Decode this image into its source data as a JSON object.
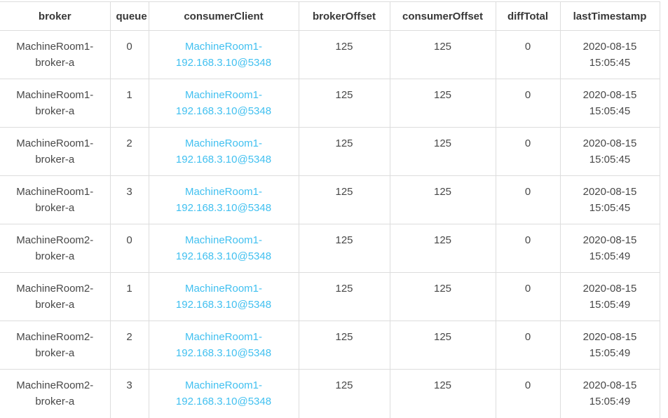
{
  "colors": {
    "link": "#41c0f0",
    "border": "#dddddd",
    "header_text": "#383838",
    "body_text": "#484848"
  },
  "table": {
    "columns": [
      {
        "key": "broker",
        "label": "broker"
      },
      {
        "key": "queue",
        "label": "queue"
      },
      {
        "key": "consumerClient",
        "label": "consumerClient"
      },
      {
        "key": "brokerOffset",
        "label": "brokerOffset"
      },
      {
        "key": "consumerOffset",
        "label": "consumerOffset"
      },
      {
        "key": "diffTotal",
        "label": "diffTotal"
      },
      {
        "key": "lastTimestamp",
        "label": "lastTimestamp"
      }
    ],
    "link_column": "consumerClient",
    "rows": [
      {
        "broker": "MachineRoom1-broker-a",
        "queue": "0",
        "consumerClient": "MachineRoom1-192.168.3.10@5348",
        "brokerOffset": "125",
        "consumerOffset": "125",
        "diffTotal": "0",
        "lastTimestamp": "2020-08-15 15:05:45"
      },
      {
        "broker": "MachineRoom1-broker-a",
        "queue": "1",
        "consumerClient": "MachineRoom1-192.168.3.10@5348",
        "brokerOffset": "125",
        "consumerOffset": "125",
        "diffTotal": "0",
        "lastTimestamp": "2020-08-15 15:05:45"
      },
      {
        "broker": "MachineRoom1-broker-a",
        "queue": "2",
        "consumerClient": "MachineRoom1-192.168.3.10@5348",
        "brokerOffset": "125",
        "consumerOffset": "125",
        "diffTotal": "0",
        "lastTimestamp": "2020-08-15 15:05:45"
      },
      {
        "broker": "MachineRoom1-broker-a",
        "queue": "3",
        "consumerClient": "MachineRoom1-192.168.3.10@5348",
        "brokerOffset": "125",
        "consumerOffset": "125",
        "diffTotal": "0",
        "lastTimestamp": "2020-08-15 15:05:45"
      },
      {
        "broker": "MachineRoom2-broker-a",
        "queue": "0",
        "consumerClient": "MachineRoom1-192.168.3.10@5348",
        "brokerOffset": "125",
        "consumerOffset": "125",
        "diffTotal": "0",
        "lastTimestamp": "2020-08-15 15:05:49"
      },
      {
        "broker": "MachineRoom2-broker-a",
        "queue": "1",
        "consumerClient": "MachineRoom1-192.168.3.10@5348",
        "brokerOffset": "125",
        "consumerOffset": "125",
        "diffTotal": "0",
        "lastTimestamp": "2020-08-15 15:05:49"
      },
      {
        "broker": "MachineRoom2-broker-a",
        "queue": "2",
        "consumerClient": "MachineRoom1-192.168.3.10@5348",
        "brokerOffset": "125",
        "consumerOffset": "125",
        "diffTotal": "0",
        "lastTimestamp": "2020-08-15 15:05:49"
      },
      {
        "broker": "MachineRoom2-broker-a",
        "queue": "3",
        "consumerClient": "MachineRoom1-192.168.3.10@5348",
        "brokerOffset": "125",
        "consumerOffset": "125",
        "diffTotal": "0",
        "lastTimestamp": "2020-08-15 15:05:49"
      }
    ]
  }
}
